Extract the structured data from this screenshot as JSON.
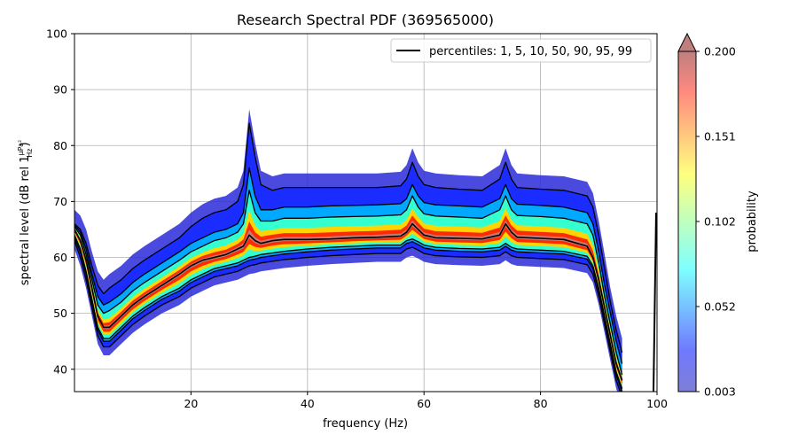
{
  "chart_data": {
    "type": "heatmap",
    "title": "Research Spectral PDF (369565000)",
    "xlabel": "frequency (Hz)",
    "ylabel": "spectral level (dB rel 1",
    "ylabel_unit_num": "µPa²",
    "ylabel_unit_den": "Hz",
    "ylabel_close": ")",
    "xlim": [
      0,
      100
    ],
    "ylim": [
      36,
      100
    ],
    "x_ticks": [
      20,
      40,
      60,
      80,
      100
    ],
    "y_ticks": [
      40,
      50,
      60,
      70,
      80,
      90,
      100
    ],
    "grid": true,
    "legend": {
      "label": "percentiles: 1, 5, 10, 50, 90, 95, 99",
      "placement": "top-right"
    },
    "colorbar": {
      "label": "probability",
      "ticks": [
        "0.200",
        "0.151",
        "0.102",
        "0.052",
        "0.003"
      ],
      "range": [
        0.003,
        0.2
      ],
      "extend": "max",
      "colormap": "jet"
    },
    "x": [
      0,
      1,
      2,
      3,
      4,
      5,
      6,
      8,
      10,
      12,
      15,
      18,
      20,
      22,
      24,
      26,
      28,
      29,
      30,
      31,
      32,
      34,
      36,
      38,
      40,
      44,
      48,
      52,
      56,
      57,
      58,
      59,
      60,
      62,
      66,
      70,
      73,
      74,
      75,
      76,
      80,
      84,
      88,
      89,
      90,
      91,
      92,
      93,
      94
    ],
    "series": [
      {
        "values": [
          63,
          60,
          56,
          51,
          46,
          44,
          44,
          46,
          48,
          49.5,
          51.5,
          53,
          54.5,
          55.5,
          56.5,
          57,
          57.5,
          58,
          58.5,
          58.7,
          59,
          59.3,
          59.6,
          59.8,
          60,
          60.3,
          60.5,
          60.7,
          60.7,
          61.5,
          61.8,
          61.3,
          60.7,
          60.3,
          60.1,
          60,
          60.3,
          61,
          60.3,
          60,
          59.8,
          59.6,
          58.7,
          57,
          53,
          48,
          43,
          38,
          35
        ]
      },
      {
        "values": [
          63.5,
          61,
          57,
          52,
          47,
          45,
          45,
          47,
          49,
          50.5,
          52.5,
          54,
          55.5,
          56.5,
          57.5,
          58,
          58.5,
          59,
          59.5,
          59.7,
          60,
          60.3,
          60.6,
          60.8,
          61,
          61.3,
          61.5,
          61.7,
          61.7,
          62.5,
          62.8,
          62.3,
          61.7,
          61.3,
          61.1,
          61,
          61.3,
          62,
          61.3,
          61,
          60.8,
          60.6,
          59.7,
          58,
          54,
          49,
          44,
          39,
          36
        ]
      },
      {
        "values": [
          64,
          61.5,
          57.5,
          52.5,
          47.5,
          45.5,
          45.5,
          47.5,
          49.5,
          51,
          53,
          54.5,
          56,
          57,
          58,
          58.5,
          59,
          59.5,
          60,
          60.2,
          60.5,
          60.8,
          61.1,
          61.3,
          61.5,
          61.8,
          62,
          62.2,
          62.2,
          63,
          63.3,
          62.8,
          62.2,
          61.8,
          61.6,
          61.5,
          61.8,
          62.5,
          61.8,
          61.5,
          61.3,
          61.1,
          60.2,
          58.5,
          54.5,
          49.5,
          44.5,
          39.5,
          36.5
        ]
      },
      {
        "values": [
          65,
          63,
          59.5,
          54.5,
          49.5,
          47.5,
          47.5,
          49.5,
          51.5,
          53,
          55,
          57,
          58.5,
          59.5,
          60,
          60.5,
          61.5,
          62,
          64,
          63,
          62.5,
          63,
          63.2,
          63.2,
          63.2,
          63.3,
          63.5,
          63.6,
          63.8,
          64.5,
          66,
          65,
          64,
          63.5,
          63.4,
          63.3,
          64,
          66,
          64.5,
          63.6,
          63.4,
          63.2,
          62,
          60,
          56,
          51,
          46,
          41,
          38
        ]
      },
      {
        "values": [
          65.5,
          64,
          60.5,
          56,
          51.5,
          50,
          50.5,
          52,
          54,
          55.5,
          57.5,
          59.5,
          61,
          62,
          63,
          63.5,
          64.5,
          66,
          72,
          68,
          66.5,
          66.5,
          67,
          67,
          67,
          67.2,
          67.3,
          67.4,
          67.6,
          68.5,
          71,
          69,
          67.8,
          67.4,
          67.2,
          67,
          68.5,
          71,
          68.5,
          67.5,
          67.3,
          67,
          66,
          64,
          59,
          53,
          48,
          43,
          39
        ]
      },
      {
        "values": [
          65.8,
          64.5,
          61.5,
          57,
          53,
          51.5,
          52,
          53.5,
          55.5,
          57,
          59,
          61,
          62.5,
          63.5,
          64.5,
          65,
          66,
          68,
          76,
          71,
          68.5,
          68.5,
          69,
          69,
          69,
          69.2,
          69.3,
          69.4,
          69.6,
          70.5,
          73,
          71,
          69.8,
          69.4,
          69.2,
          69,
          70.5,
          73,
          70.5,
          69.5,
          69.3,
          69,
          68,
          66,
          61,
          55,
          50,
          45,
          41
        ]
      },
      {
        "values": [
          66,
          65,
          62.5,
          58.5,
          55,
          53.5,
          54.5,
          56,
          58,
          59.5,
          61.5,
          63.5,
          65.5,
          67,
          68,
          68.5,
          70,
          73,
          84,
          78,
          73,
          72,
          72.5,
          72.5,
          72.5,
          72.5,
          72.5,
          72.5,
          72.8,
          74,
          77,
          74.5,
          73,
          72.5,
          72.2,
          72,
          74,
          77,
          74,
          72.5,
          72.2,
          72,
          71,
          69,
          64,
          58,
          52,
          47,
          43
        ]
      }
    ]
  }
}
